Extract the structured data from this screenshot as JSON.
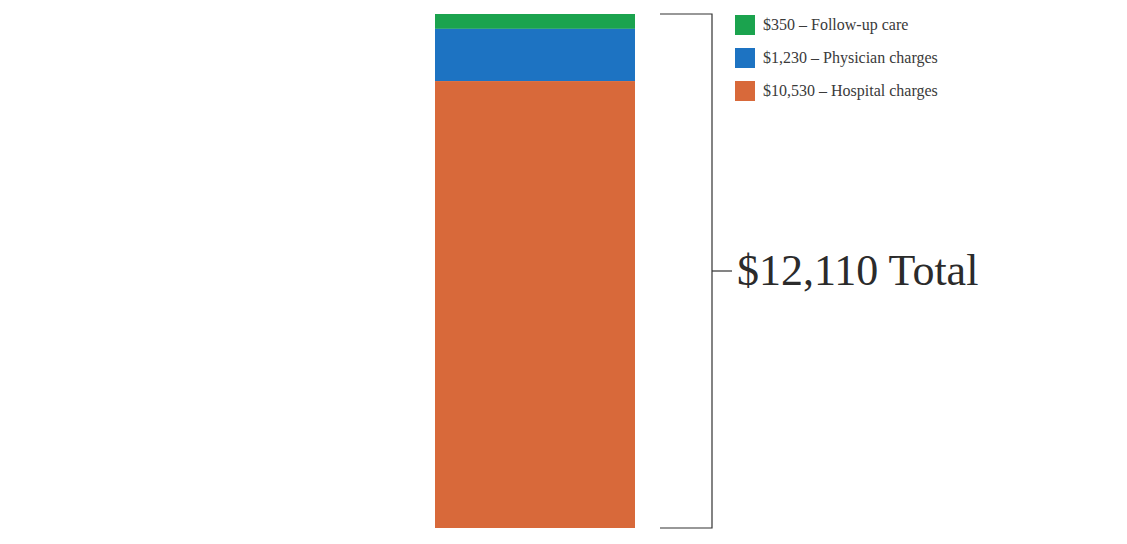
{
  "chart_data": {
    "type": "bar",
    "stacked": true,
    "categories": [
      null
    ],
    "series": [
      {
        "name": "$350 – Follow-up care",
        "color": "#1ba34e",
        "values": [
          350
        ]
      },
      {
        "name": "$1,230 – Physician charges",
        "color": "#1d73c2",
        "values": [
          1230
        ]
      },
      {
        "name": "$10,530 – Hospital charges",
        "color": "#d8693a",
        "values": [
          10530
        ]
      }
    ],
    "ylim": [
      0,
      12110
    ],
    "yticks": [],
    "tick_labels": false,
    "legend": "top-right",
    "annotations": [
      "$12,110 Total"
    ]
  }
}
